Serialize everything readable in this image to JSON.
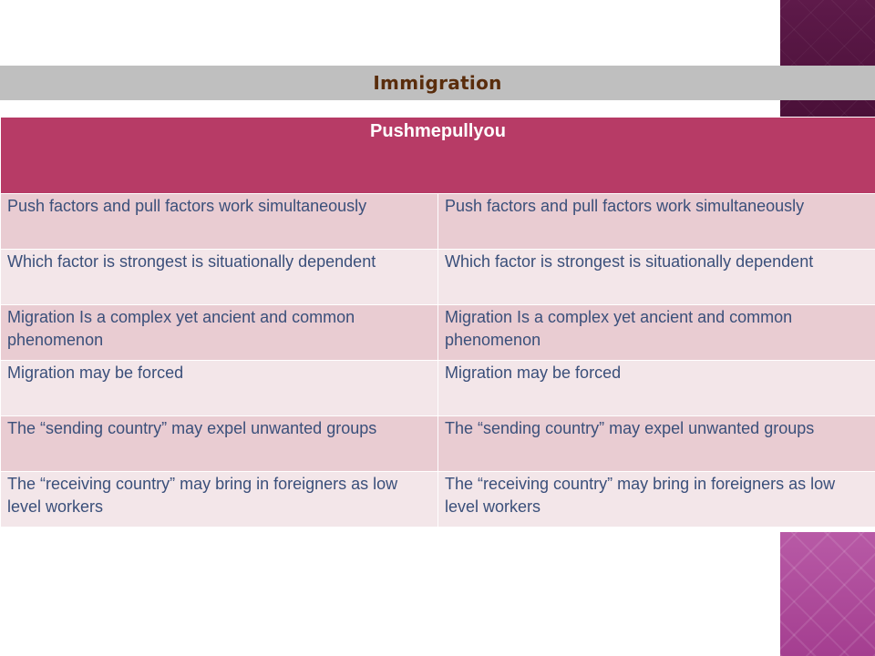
{
  "slide": {
    "title": "Immigration",
    "table": {
      "header": "Pushmepullyou",
      "rows": [
        [
          "Push factors and pull factors work simultaneously",
          "Push factors and pull factors work simultaneously"
        ],
        [
          "Which factor is strongest is situationally dependent",
          "Which factor is strongest is situationally dependent"
        ],
        [
          "Migration Is a complex yet ancient and common phenomenon",
          "Migration Is a complex yet ancient and common phenomenon"
        ],
        [
          "Migration may be forced",
          "Migration may be forced"
        ],
        [
          "The “sending country” may expel unwanted groups",
          "The “sending country” may expel unwanted groups"
        ],
        [
          "The “receiving country” may bring in foreigners as low level workers",
          "The “receiving country” may bring in foreigners as low level workers"
        ]
      ]
    }
  },
  "colors": {
    "title_bar": "#bfbfbf",
    "title_text": "#5a2d0c",
    "header_bg": "#b73b66",
    "row_odd": "#e9ccd2",
    "row_even": "#f3e6e9",
    "cell_text": "#3a4f7a"
  }
}
